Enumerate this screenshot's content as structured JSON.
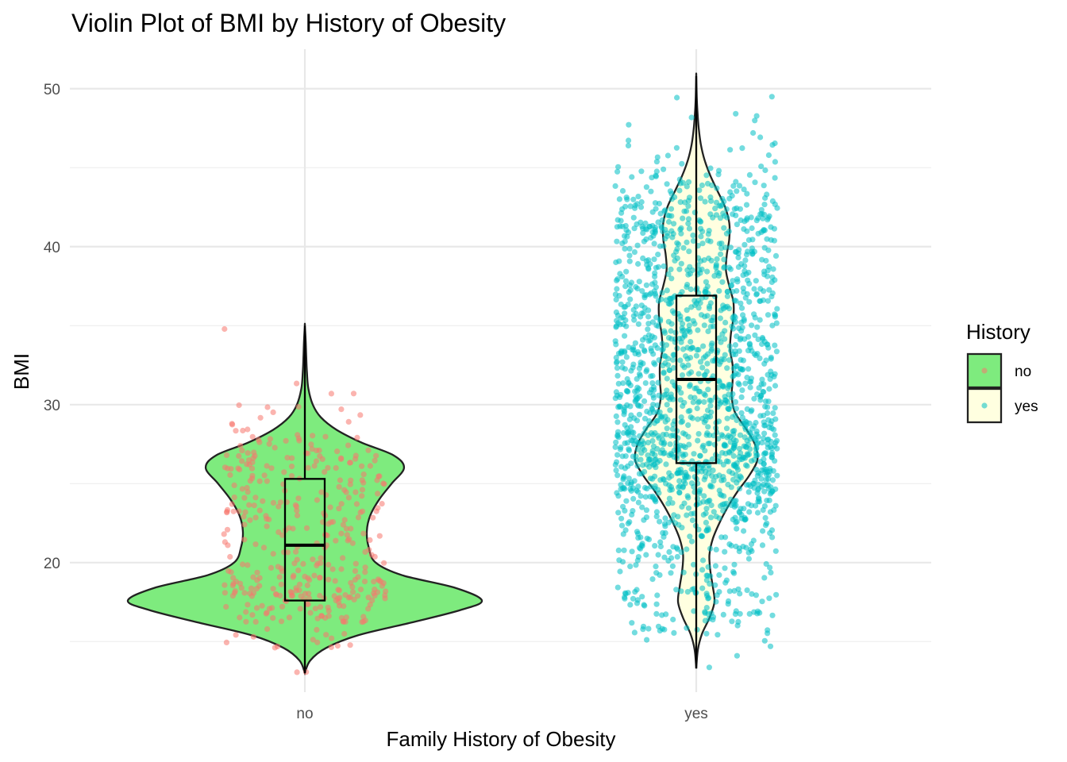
{
  "chart_data": {
    "type": "violin",
    "title": "Violin Plot of BMI by History of Obesity",
    "xlabel": "Family History of Obesity",
    "ylabel": "BMI",
    "categories": [
      "no",
      "yes"
    ],
    "y_ticks": [
      20,
      30,
      40,
      50
    ],
    "ylim": [
      11.8,
      52.5
    ],
    "grid": true,
    "legend": {
      "title": "History",
      "position": "right",
      "entries": [
        {
          "label": "no",
          "fill": "#7EEB7E",
          "point": "#F8766D"
        },
        {
          "label": "yes",
          "fill": "#FFFFE0",
          "point": "#00BFC4"
        }
      ]
    },
    "groups": [
      {
        "name": "no",
        "n_points": 385,
        "violin_fill": "#7EEB7E",
        "point_color": "#F8766D",
        "box": {
          "q1": 17.6,
          "median": 21.1,
          "q3": 25.3,
          "min": 13.0,
          "max": 35.0
        },
        "density": [
          {
            "y": 13.0,
            "d": 0.0
          },
          {
            "y": 13.8,
            "d": 0.03
          },
          {
            "y": 14.6,
            "d": 0.12
          },
          {
            "y": 15.4,
            "d": 0.3
          },
          {
            "y": 16.2,
            "d": 0.6
          },
          {
            "y": 17.0,
            "d": 0.88
          },
          {
            "y": 17.6,
            "d": 1.0
          },
          {
            "y": 18.4,
            "d": 0.85
          },
          {
            "y": 19.2,
            "d": 0.55
          },
          {
            "y": 20.0,
            "d": 0.4
          },
          {
            "y": 21.0,
            "d": 0.36
          },
          {
            "y": 22.0,
            "d": 0.35
          },
          {
            "y": 23.0,
            "d": 0.37
          },
          {
            "y": 24.0,
            "d": 0.42
          },
          {
            "y": 25.0,
            "d": 0.49
          },
          {
            "y": 26.0,
            "d": 0.56
          },
          {
            "y": 26.8,
            "d": 0.5
          },
          {
            "y": 27.6,
            "d": 0.32
          },
          {
            "y": 28.4,
            "d": 0.18
          },
          {
            "y": 29.2,
            "d": 0.09
          },
          {
            "y": 30.0,
            "d": 0.045
          },
          {
            "y": 31.0,
            "d": 0.02
          },
          {
            "y": 32.0,
            "d": 0.012
          },
          {
            "y": 33.0,
            "d": 0.008
          },
          {
            "y": 34.0,
            "d": 0.005
          },
          {
            "y": 35.0,
            "d": 0.0
          }
        ]
      },
      {
        "name": "yes",
        "n_points": 1726,
        "violin_fill": "#FFFFE0",
        "point_color": "#00BFC4",
        "box": {
          "q1": 26.3,
          "median": 31.6,
          "q3": 36.9,
          "min": 13.3,
          "max": 50.8
        },
        "density": [
          {
            "y": 13.3,
            "d": 0.0
          },
          {
            "y": 14.5,
            "d": 0.02
          },
          {
            "y": 15.5,
            "d": 0.07
          },
          {
            "y": 16.5,
            "d": 0.16
          },
          {
            "y": 17.5,
            "d": 0.22
          },
          {
            "y": 18.5,
            "d": 0.2
          },
          {
            "y": 19.5,
            "d": 0.17
          },
          {
            "y": 20.5,
            "d": 0.16
          },
          {
            "y": 21.5,
            "d": 0.2
          },
          {
            "y": 22.5,
            "d": 0.28
          },
          {
            "y": 23.5,
            "d": 0.38
          },
          {
            "y": 24.5,
            "d": 0.5
          },
          {
            "y": 25.5,
            "d": 0.64
          },
          {
            "y": 26.5,
            "d": 0.74
          },
          {
            "y": 27.5,
            "d": 0.71
          },
          {
            "y": 28.5,
            "d": 0.6
          },
          {
            "y": 29.5,
            "d": 0.47
          },
          {
            "y": 30.5,
            "d": 0.43
          },
          {
            "y": 31.5,
            "d": 0.44
          },
          {
            "y": 32.5,
            "d": 0.44
          },
          {
            "y": 33.5,
            "d": 0.41
          },
          {
            "y": 34.5,
            "d": 0.42
          },
          {
            "y": 35.5,
            "d": 0.45
          },
          {
            "y": 36.5,
            "d": 0.45
          },
          {
            "y": 37.5,
            "d": 0.4
          },
          {
            "y": 38.5,
            "d": 0.36
          },
          {
            "y": 39.5,
            "d": 0.37
          },
          {
            "y": 40.5,
            "d": 0.4
          },
          {
            "y": 41.5,
            "d": 0.4
          },
          {
            "y": 42.5,
            "d": 0.35
          },
          {
            "y": 43.5,
            "d": 0.26
          },
          {
            "y": 44.5,
            "d": 0.17
          },
          {
            "y": 45.5,
            "d": 0.1
          },
          {
            "y": 46.5,
            "d": 0.055
          },
          {
            "y": 47.5,
            "d": 0.03
          },
          {
            "y": 48.5,
            "d": 0.015
          },
          {
            "y": 49.5,
            "d": 0.006
          },
          {
            "y": 50.8,
            "d": 0.0
          }
        ]
      }
    ]
  }
}
